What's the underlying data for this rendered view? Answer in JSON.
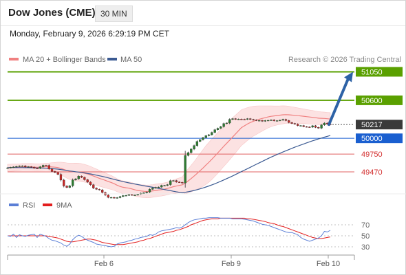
{
  "header": {
    "title": "Dow Jones (CME)",
    "timeframe": "30 MIN",
    "timestamp": "Monday, February 9, 2026 6:29:19 PM CET",
    "copyright": "Research © 2026 Trading Central"
  },
  "colors": {
    "candle_up": "#2e7d32",
    "candle_down": "#c62828",
    "ma20": "#f08080",
    "bollinger_fill": "#fcdede",
    "ma50": "#3b5a92",
    "resistance": "#5aa000",
    "pivot": "#1a5fd0",
    "support": "#e06060",
    "last_price": "#3a3a3a",
    "rsi": "#5b7fd6",
    "rsi_ma": "#e31e1e",
    "arrow": "#2d62a6"
  },
  "chart_data": [
    {
      "type": "candlestick",
      "title": "Dow Jones (CME)",
      "legend": [
        {
          "name": "MA 20 + Bollinger Bands",
          "color": "#f08080"
        },
        {
          "name": "MA 50",
          "color": "#3b5a92"
        }
      ],
      "legend_position": "top-left",
      "x_ticks": [
        "Feb 6",
        "Feb 9",
        "Feb 10"
      ],
      "ylim": [
        49220,
        51120
      ],
      "levels": [
        {
          "value": 51050,
          "label": "51050",
          "kind": "resistance"
        },
        {
          "value": 50600,
          "label": "50600",
          "kind": "resistance"
        },
        {
          "value": 50000,
          "label": "50000",
          "kind": "pivot"
        },
        {
          "value": 49750,
          "label": "49750",
          "kind": "support"
        },
        {
          "value": 49470,
          "label": "49470",
          "kind": "support"
        }
      ],
      "last_price": {
        "value": 50217,
        "label": "50217"
      },
      "target_arrow": {
        "from": 50217,
        "to": 51050
      },
      "candles_close": [
        49534,
        49541,
        49548,
        49556,
        49563,
        49565,
        49549,
        49552,
        49544,
        49529,
        49525,
        49551,
        49573,
        49572,
        49517,
        49478,
        49460,
        49430,
        49340,
        49247,
        49224,
        49250,
        49343,
        49360,
        49402,
        49383,
        49346,
        49308,
        49265,
        49214,
        49195,
        49185,
        49144,
        49103,
        49067,
        49067,
        49056,
        49063,
        49080,
        49095,
        49099,
        49111,
        49103,
        49104,
        49116,
        49133,
        49139,
        49151,
        49195,
        49214,
        49225,
        49230,
        49255,
        49255,
        49268,
        49330,
        49332,
        49310,
        49305,
        49295,
        49729,
        49774,
        49829,
        49884,
        49950,
        49978,
        50011,
        50041,
        50056,
        50093,
        50135,
        50158,
        50184,
        50232,
        50241,
        50298,
        50310,
        50300,
        50303,
        50301,
        50299,
        50310,
        50298,
        50290,
        50281,
        50282,
        50270,
        50280,
        50284,
        50290,
        50276,
        50279,
        50286,
        50299,
        50280,
        50249,
        50234,
        50224,
        50200,
        50201,
        50185,
        50180,
        50176,
        50198,
        50173,
        50160,
        50210,
        50240,
        50228,
        50217
      ],
      "ma20": [
        49535,
        49536,
        49538,
        49540,
        49542,
        49546,
        49546,
        49547,
        49547,
        49545,
        49543,
        49544,
        49547,
        49551,
        49551,
        49548,
        49544,
        49538,
        49525,
        49508,
        49491,
        49478,
        49472,
        49468,
        49465,
        49458,
        49447,
        49436,
        49421,
        49403,
        49386,
        49368,
        49352,
        49336,
        49318,
        49303,
        49283,
        49259,
        49240,
        49227,
        49219,
        49212,
        49200,
        49186,
        49176,
        49169,
        49164,
        49160,
        49162,
        49169,
        49176,
        49183,
        49189,
        49197,
        49208,
        49222,
        49236,
        49246,
        49256,
        49266,
        49294,
        49327,
        49364,
        49403,
        49445,
        49488,
        49531,
        49577,
        49622,
        49669,
        49719,
        49769,
        49821,
        49872,
        49921,
        49970,
        50020,
        50069,
        50119,
        50169,
        50197,
        50225,
        50249,
        50269,
        50285,
        50300,
        50313,
        50325,
        50337,
        50347,
        50354,
        50360,
        50365,
        50371,
        50373,
        50371,
        50367,
        50363,
        50358,
        50353,
        50348,
        50342,
        50336,
        50331,
        50325,
        50318,
        50315,
        50313,
        50309,
        50304
      ],
      "ma50": [
        49537,
        49537,
        49537,
        49537,
        49537,
        49537,
        49536,
        49536,
        49535,
        49533,
        49531,
        49530,
        49529,
        49527,
        49524,
        49521,
        49517,
        49513,
        49507,
        49499,
        49491,
        49484,
        49478,
        49472,
        49467,
        49461,
        49453,
        49445,
        49437,
        49428,
        49418,
        49408,
        49398,
        49387,
        49375,
        49363,
        49351,
        49339,
        49327,
        49316,
        49306,
        49296,
        49287,
        49278,
        49269,
        49260,
        49251,
        49243,
        49235,
        49227,
        49218,
        49209,
        49200,
        49191,
        49182,
        49173,
        49164,
        49155,
        49147,
        49139,
        49147,
        49156,
        49166,
        49177,
        49189,
        49202,
        49216,
        49231,
        49247,
        49264,
        49282,
        49301,
        49321,
        49342,
        49363,
        49384,
        49406,
        49428,
        49451,
        49474,
        49497,
        49520,
        49543,
        49566,
        49589,
        49612,
        49635,
        49658,
        49680,
        49702,
        49723,
        49744,
        49764,
        49784,
        49803,
        49822,
        49841,
        49859,
        49877,
        49894,
        49911,
        49928,
        49944,
        49960,
        49975,
        49990,
        50004,
        50018,
        50031,
        50044
      ],
      "bollinger_half_width": [
        55,
        55,
        55,
        55,
        55,
        55,
        55,
        55,
        55,
        55,
        55,
        55,
        55,
        55,
        58,
        66,
        75,
        85,
        98,
        110,
        120,
        128,
        134,
        140,
        142,
        142,
        140,
        138,
        136,
        132,
        129,
        126,
        122,
        118,
        114,
        110,
        105,
        102,
        100,
        100,
        100,
        100,
        100,
        100,
        100,
        100,
        100,
        100,
        100,
        100,
        100,
        100,
        100,
        100,
        100,
        103,
        108,
        113,
        118,
        123,
        170,
        190,
        210,
        230,
        250,
        270,
        290,
        305,
        315,
        320,
        322,
        322,
        320,
        318,
        314,
        310,
        305,
        298,
        290,
        282,
        272,
        260,
        248,
        236,
        225,
        212,
        199,
        186,
        174,
        164,
        156,
        150,
        146,
        142,
        138,
        134,
        130,
        126,
        122,
        119,
        116,
        113,
        110,
        108,
        106,
        104,
        102,
        100,
        100,
        100
      ]
    },
    {
      "type": "line",
      "legend": [
        {
          "name": "RSI",
          "color": "#5b7fd6"
        },
        {
          "name": "9MA",
          "color": "#e31e1e"
        }
      ],
      "legend_position": "top-left",
      "y_ticks": [
        70,
        50,
        30
      ],
      "ylim": [
        10,
        90
      ],
      "series": [
        {
          "name": "RSI",
          "values": [
            50,
            49,
            53,
            47,
            52,
            50,
            49,
            51,
            52,
            53,
            47,
            53,
            51,
            49,
            45,
            42,
            41,
            39,
            37,
            33,
            31,
            35,
            43,
            48,
            51,
            49,
            45,
            42,
            40,
            38,
            35,
            34,
            33,
            32,
            31,
            30,
            31,
            35,
            37,
            38,
            39,
            41,
            42,
            44,
            45,
            47,
            48,
            49,
            52,
            51,
            53,
            57,
            59,
            60,
            61,
            62,
            63,
            65,
            64,
            66,
            70,
            74,
            77,
            79,
            80,
            81,
            82,
            82,
            83,
            83,
            83,
            83,
            82,
            82,
            82,
            82,
            81,
            81,
            81,
            81,
            80,
            79,
            78,
            77,
            75,
            73,
            71,
            70,
            69,
            67,
            65,
            63,
            61,
            59,
            57,
            56,
            56,
            54,
            52,
            47,
            44,
            42,
            40,
            42,
            44,
            46,
            50,
            58,
            57,
            60
          ]
        },
        {
          "name": "9MA",
          "values": [
            50,
            50,
            50,
            50,
            50,
            50,
            50,
            50,
            50,
            50,
            50,
            50,
            50,
            50,
            49,
            48,
            47,
            46,
            44,
            42,
            40,
            39,
            39,
            40,
            41,
            42,
            43,
            44,
            44,
            43,
            42,
            40,
            38,
            37,
            36,
            35,
            34,
            34,
            34,
            34,
            35,
            36,
            37,
            38,
            39,
            41,
            42,
            44,
            45,
            47,
            49,
            51,
            53,
            55,
            56,
            57,
            58,
            60,
            61,
            63,
            65,
            67,
            70,
            72,
            74,
            76,
            78,
            79,
            80,
            81,
            81,
            81,
            82,
            82,
            82,
            82,
            82,
            82,
            82,
            82,
            82,
            81,
            81,
            80,
            79,
            78,
            77,
            76,
            74,
            73,
            72,
            70,
            68,
            67,
            65,
            63,
            61,
            59,
            57,
            55,
            53,
            51,
            49,
            47,
            46,
            45,
            45,
            46,
            47,
            48
          ]
        }
      ]
    }
  ]
}
